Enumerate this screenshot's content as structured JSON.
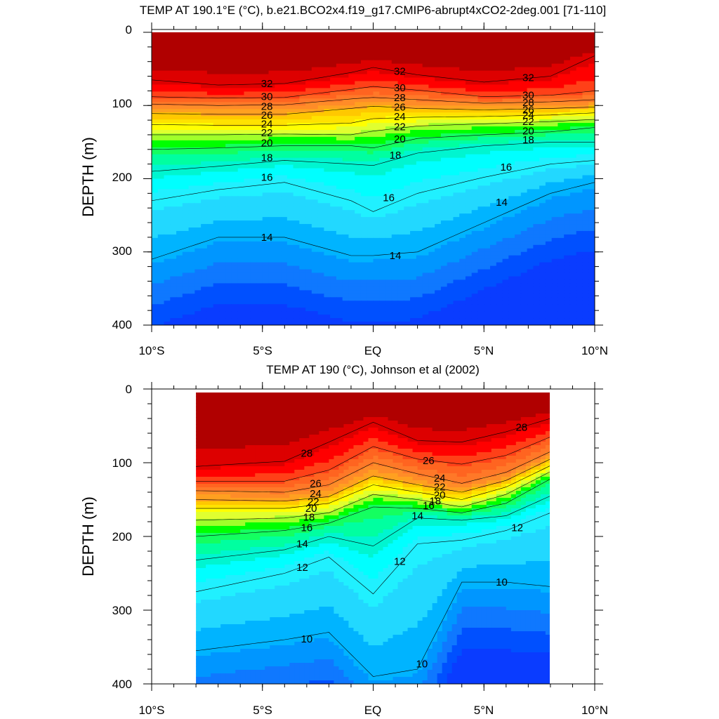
{
  "colors": {
    "fill_scale": [
      "#0a3cff",
      "#0050ff",
      "#0f78ff",
      "#0096ff",
      "#00b4ff",
      "#22d8ff",
      "#20f0ff",
      "#00ffff",
      "#00f5d0",
      "#00ffa0",
      "#14ff60",
      "#00ff00",
      "#a0ff2a",
      "#e0ff30",
      "#ffff00",
      "#ffe200",
      "#ffc800",
      "#ffa020",
      "#ff8c28",
      "#ff7828",
      "#ff6420",
      "#ff4018",
      "#ff0000",
      "#dd0000",
      "#b00000"
    ]
  },
  "chart_data": [
    {
      "type": "contour",
      "title": "TEMP AT 190.1°E (°C), b.e21.BCO2x4.f19_g17.CMIP6-abrupt4xCO2-2deg.001 [71-110]",
      "xlabel": "",
      "ylabel": "DEPTH (m)",
      "x_ticks": [
        "10°S",
        "5°S",
        "EQ",
        "5°N",
        "10°N"
      ],
      "y_ticks": [
        "0",
        "100",
        "200",
        "300",
        "400"
      ],
      "x_range": [
        -10,
        10
      ],
      "y_range": [
        0,
        400
      ],
      "y_inverted": true,
      "data_lat_range": [
        -10,
        10
      ],
      "levels": [
        14,
        16,
        18,
        20,
        22,
        24,
        26,
        28,
        30,
        32
      ],
      "isotherms": [
        {
          "temp": 32,
          "lat": [
            -10,
            -7,
            -4,
            -1,
            0,
            2,
            5,
            8,
            10
          ],
          "depth": [
            65,
            72,
            70,
            55,
            48,
            58,
            68,
            60,
            32
          ],
          "labels": [
            [
              -4.8,
              70
            ],
            [
              1.2,
              53
            ],
            [
              7,
              62
            ]
          ]
        },
        {
          "temp": 30,
          "lat": [
            -10,
            -7,
            -4,
            -1,
            0,
            2,
            5,
            8,
            10
          ],
          "depth": [
            88,
            90,
            89,
            78,
            74,
            79,
            88,
            86,
            80
          ],
          "labels": [
            [
              -4.8,
              88
            ],
            [
              1.2,
              76
            ],
            [
              7,
              86
            ]
          ]
        },
        {
          "temp": 28,
          "lat": [
            -10,
            -7,
            -4,
            -1,
            0,
            2,
            5,
            8,
            10
          ],
          "depth": [
            98,
            100,
            99,
            91,
            89,
            92,
            97,
            95,
            92
          ],
          "labels": [
            [
              -4.8,
              101
            ],
            [
              1.2,
              89
            ],
            [
              7,
              96
            ]
          ]
        },
        {
          "temp": 26,
          "lat": [
            -10,
            -7,
            -4,
            -1,
            0,
            2,
            5,
            8,
            10
          ],
          "depth": [
            111,
            112,
            112,
            104,
            101,
            104,
            106,
            104,
            102
          ],
          "labels": [
            [
              -4.8,
              113
            ],
            [
              1.2,
              102
            ],
            [
              7,
              106
            ]
          ]
        },
        {
          "temp": 24,
          "lat": [
            -10,
            -7,
            -4,
            -1,
            0,
            2,
            5,
            8,
            10
          ],
          "depth": [
            126,
            127,
            127,
            124,
            118,
            116,
            115,
            113,
            110
          ],
          "labels": [
            [
              -4.8,
              125
            ],
            [
              1.2,
              115
            ],
            [
              7,
              113
            ]
          ]
        },
        {
          "temp": 22,
          "lat": [
            -10,
            -7,
            -4,
            -1,
            0,
            2,
            5,
            8,
            10
          ],
          "depth": [
            140,
            140,
            139,
            140,
            135,
            128,
            125,
            122,
            119
          ],
          "labels": [
            [
              -4.8,
              137
            ],
            [
              1.2,
              129
            ],
            [
              7,
              122
            ]
          ]
        },
        {
          "temp": 20,
          "lat": [
            -10,
            -7,
            -4,
            -1,
            0,
            2,
            5,
            8,
            10
          ],
          "depth": [
            160,
            158,
            155,
            155,
            158,
            145,
            140,
            136,
            130
          ],
          "labels": [
            [
              -4.8,
              151
            ],
            [
              1.2,
              146
            ],
            [
              7,
              135
            ]
          ]
        },
        {
          "temp": 18,
          "lat": [
            -10,
            -7,
            -4,
            -1,
            0,
            2,
            5,
            8,
            10
          ],
          "depth": [
            190,
            183,
            175,
            180,
            182,
            165,
            155,
            150,
            150
          ],
          "labels": [
            [
              -4.8,
              171
            ],
            [
              1,
              168
            ],
            [
              7,
              147
            ]
          ]
        },
        {
          "temp": 16,
          "lat": [
            -10,
            -7,
            -4,
            -1,
            0,
            2,
            5,
            8,
            10
          ],
          "depth": [
            230,
            215,
            205,
            230,
            245,
            220,
            198,
            180,
            175
          ],
          "labels": [
            [
              -4.8,
              198
            ],
            [
              0.7,
              226
            ],
            [
              6,
              184
            ]
          ]
        },
        {
          "temp": 14,
          "lat": [
            -10,
            -7,
            -4,
            -1,
            0,
            2,
            5,
            8,
            10
          ],
          "depth": [
            310,
            280,
            280,
            305,
            305,
            300,
            260,
            220,
            205
          ],
          "labels": [
            [
              -4.8,
              280
            ],
            [
              1,
              305
            ],
            [
              5.8,
              232
            ]
          ]
        }
      ]
    },
    {
      "type": "contour",
      "title": "TEMP AT 190 (°C), Johnson et al (2002)",
      "xlabel": "",
      "ylabel": "DEPTH (m)",
      "x_ticks": [
        "10°S",
        "5°S",
        "EQ",
        "5°N",
        "10°N"
      ],
      "y_ticks": [
        "0",
        "100",
        "200",
        "300",
        "400"
      ],
      "x_range": [
        -10,
        10
      ],
      "y_range": [
        0,
        400
      ],
      "y_inverted": true,
      "data_lat_range": [
        -8,
        8
      ],
      "levels": [
        10,
        12,
        14,
        16,
        18,
        20,
        22,
        24,
        26,
        28
      ],
      "isotherms": [
        {
          "temp": 28,
          "lat": [
            -8,
            -4,
            -2,
            0,
            2,
            4,
            6,
            8
          ],
          "depth": [
            105,
            98,
            72,
            45,
            70,
            72,
            58,
            40
          ],
          "labels": [
            [
              -3,
              87
            ],
            [
              6.7,
              52
            ]
          ]
        },
        {
          "temp": 26,
          "lat": [
            -8,
            -4,
            -2,
            0,
            2,
            4,
            6,
            8
          ],
          "depth": [
            125,
            125,
            110,
            78,
            95,
            102,
            90,
            65
          ],
          "labels": [
            [
              -2.6,
              128
            ],
            [
              2.5,
              97
            ]
          ]
        },
        {
          "temp": 24,
          "lat": [
            -8,
            -4,
            -2,
            0,
            2,
            4,
            6,
            8
          ],
          "depth": [
            138,
            140,
            130,
            100,
            115,
            128,
            113,
            85
          ],
          "labels": [
            [
              -2.6,
              142
            ],
            [
              3,
              121
            ]
          ]
        },
        {
          "temp": 22,
          "lat": [
            -8,
            -4,
            -2,
            0,
            2,
            4,
            6,
            8
          ],
          "depth": [
            150,
            152,
            146,
            118,
            130,
            140,
            124,
            95
          ],
          "labels": [
            [
              -2.7,
              153
            ],
            [
              3,
              133
            ]
          ]
        },
        {
          "temp": 20,
          "lat": [
            -8,
            -4,
            -2,
            0,
            2,
            4,
            6,
            8
          ],
          "depth": [
            162,
            162,
            155,
            130,
            140,
            150,
            133,
            104
          ],
          "labels": [
            [
              -2.8,
              162
            ],
            [
              3,
              144
            ]
          ]
        },
        {
          "temp": 18,
          "lat": [
            -8,
            -4,
            -2,
            0,
            2,
            4,
            6,
            8
          ],
          "depth": [
            178,
            175,
            168,
            143,
            150,
            160,
            143,
            112
          ],
          "labels": [
            [
              -2.9,
              174
            ],
            [
              2.8,
              152
            ]
          ]
        },
        {
          "temp": 16,
          "lat": [
            -8,
            -4,
            -2,
            0,
            2,
            4,
            6,
            8
          ],
          "depth": [
            200,
            192,
            182,
            160,
            162,
            168,
            155,
            122
          ],
          "labels": [
            [
              -3,
              188
            ],
            [
              2.5,
              158
            ]
          ]
        },
        {
          "temp": 14,
          "lat": [
            -8,
            -4,
            -2,
            0,
            2,
            4,
            6,
            8
          ],
          "depth": [
            232,
            218,
            200,
            213,
            175,
            178,
            172,
            145
          ],
          "labels": [
            [
              -3.2,
              210
            ],
            [
              2,
              172
            ]
          ]
        },
        {
          "temp": 12,
          "lat": [
            -8,
            -4,
            -2,
            0,
            2,
            4,
            6,
            8
          ],
          "depth": [
            275,
            250,
            228,
            278,
            210,
            205,
            192,
            168
          ],
          "labels": [
            [
              -3.2,
              242
            ],
            [
              1.2,
              234
            ],
            [
              6.5,
              188
            ]
          ]
        },
        {
          "temp": 10,
          "lat": [
            -8,
            -4,
            -2,
            0,
            2,
            4,
            6,
            8
          ],
          "depth": [
            355,
            340,
            330,
            390,
            380,
            262,
            262,
            268
          ],
          "labels": [
            [
              -3,
              339
            ],
            [
              2.2,
              373
            ],
            [
              5.8,
              262
            ]
          ]
        }
      ]
    }
  ]
}
